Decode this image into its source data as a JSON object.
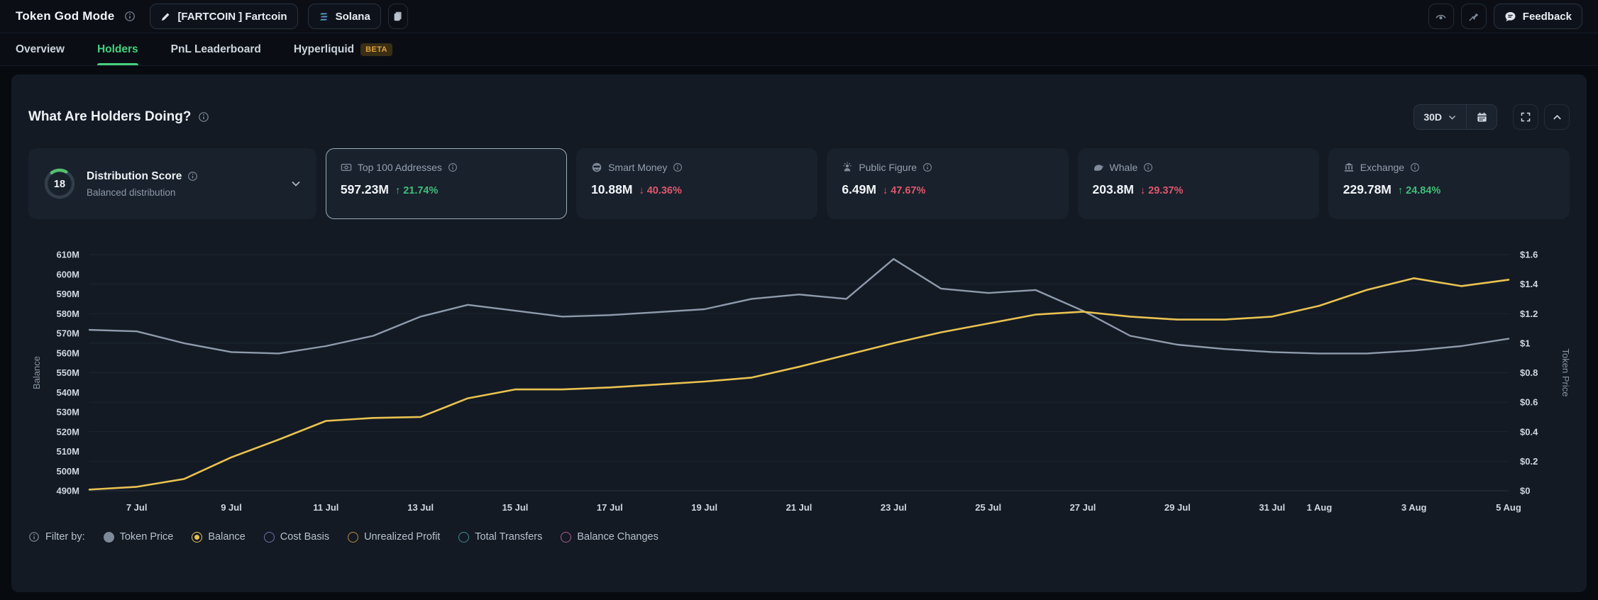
{
  "header": {
    "app_title": "Token God Mode",
    "token_selector": "[FARTCOIN ] Fartcoin",
    "network_selector": "Solana",
    "feedback_button": "Feedback"
  },
  "tabs": [
    {
      "label": "Overview",
      "active": false
    },
    {
      "label": "Holders",
      "active": true
    },
    {
      "label": "PnL Leaderboard",
      "active": false
    },
    {
      "label": "Hyperliquid",
      "active": false,
      "badge": "BETA"
    }
  ],
  "panel": {
    "title": "What Are Holders Doing?",
    "time_range": "30D"
  },
  "distribution": {
    "score": "18",
    "title": "Distribution Score",
    "subtitle": "Balanced distribution"
  },
  "stat_cards": [
    {
      "label": "Top 100 Addresses",
      "value": "597.23M",
      "direction": "up",
      "change": "21.74%",
      "selected": true
    },
    {
      "label": "Smart Money",
      "value": "10.88M",
      "direction": "down",
      "change": "40.36%",
      "selected": false
    },
    {
      "label": "Public Figure",
      "value": "6.49M",
      "direction": "down",
      "change": "47.67%",
      "selected": false
    },
    {
      "label": "Whale",
      "value": "203.8M",
      "direction": "down",
      "change": "29.37%",
      "selected": false
    },
    {
      "label": "Exchange",
      "value": "229.78M",
      "direction": "up",
      "change": "24.84%",
      "selected": false
    }
  ],
  "colors": {
    "up": "#3fbf78",
    "down": "#e0576c",
    "accent_green": "#45d07e",
    "balance_line": "#e9c250",
    "price_line": "#8f9bac"
  },
  "chart_data": {
    "type": "line",
    "x": [
      "6 Jul",
      "7 Jul",
      "8 Jul",
      "9 Jul",
      "10 Jul",
      "11 Jul",
      "12 Jul",
      "13 Jul",
      "14 Jul",
      "15 Jul",
      "16 Jul",
      "17 Jul",
      "18 Jul",
      "19 Jul",
      "20 Jul",
      "21 Jul",
      "22 Jul",
      "23 Jul",
      "24 Jul",
      "25 Jul",
      "26 Jul",
      "27 Jul",
      "28 Jul",
      "29 Jul",
      "30 Jul",
      "31 Jul",
      "1 Aug",
      "2 Aug",
      "3 Aug",
      "4 Aug",
      "5 Aug"
    ],
    "x_tick_labels": [
      "7 Jul",
      "9 Jul",
      "11 Jul",
      "13 Jul",
      "15 Jul",
      "17 Jul",
      "19 Jul",
      "21 Jul",
      "23 Jul",
      "25 Jul",
      "27 Jul",
      "29 Jul",
      "31 Jul",
      "1 Aug",
      "3 Aug",
      "5 Aug"
    ],
    "series": [
      {
        "name": "Token Price",
        "axis": "right",
        "color": "#8f9bac",
        "values": [
          1.09,
          1.08,
          1.0,
          0.94,
          0.93,
          0.98,
          1.05,
          1.18,
          1.26,
          1.22,
          1.18,
          1.19,
          1.21,
          1.23,
          1.3,
          1.33,
          1.3,
          1.57,
          1.37,
          1.34,
          1.36,
          1.22,
          1.05,
          0.99,
          0.96,
          0.94,
          0.93,
          0.93,
          0.95,
          0.98,
          1.03
        ]
      },
      {
        "name": "Balance",
        "axis": "left",
        "color": "#e9c250",
        "values": [
          490.6,
          492,
          496,
          507,
          516,
          525.5,
          527,
          527.5,
          537,
          541.5,
          541.5,
          542.5,
          544,
          545.5,
          547.5,
          553,
          559,
          565,
          570.5,
          575,
          579.5,
          581,
          578.5,
          577,
          577,
          578.5,
          584,
          592,
          598,
          594,
          597.23
        ]
      }
    ],
    "left_axis": {
      "label": "Balance",
      "unit": "M tokens",
      "min": 490,
      "max": 610,
      "ticks": [
        "610M",
        "600M",
        "590M",
        "580M",
        "570M",
        "560M",
        "550M",
        "540M",
        "530M",
        "520M",
        "510M",
        "500M",
        "490M"
      ]
    },
    "right_axis": {
      "label": "Token Price",
      "unit": "USD",
      "min": 0,
      "max": 1.6,
      "ticks": [
        "$1.6",
        "$1.4",
        "$1.2",
        "$1",
        "$0.8",
        "$0.6",
        "$0.4",
        "$0.2",
        "$0"
      ]
    },
    "grid": "horizontal",
    "legend_position": "none"
  },
  "filter": {
    "label": "Filter by:",
    "options": [
      {
        "label": "Token Price",
        "color": "#7e8a99",
        "style": "filled",
        "state": "shown-as-line"
      },
      {
        "label": "Balance",
        "color": "#e9c250",
        "style": "selected",
        "state": "selected"
      },
      {
        "label": "Cost Basis",
        "color": "#6d74a8",
        "style": "ring",
        "state": "unselected"
      },
      {
        "label": "Unrealized Profit",
        "color": "#c08a3e",
        "style": "ring",
        "state": "unselected"
      },
      {
        "label": "Total Transfers",
        "color": "#3e8a96",
        "style": "ring",
        "state": "unselected"
      },
      {
        "label": "Balance Changes",
        "color": "#b05a92",
        "style": "ring",
        "state": "unselected"
      }
    ]
  }
}
